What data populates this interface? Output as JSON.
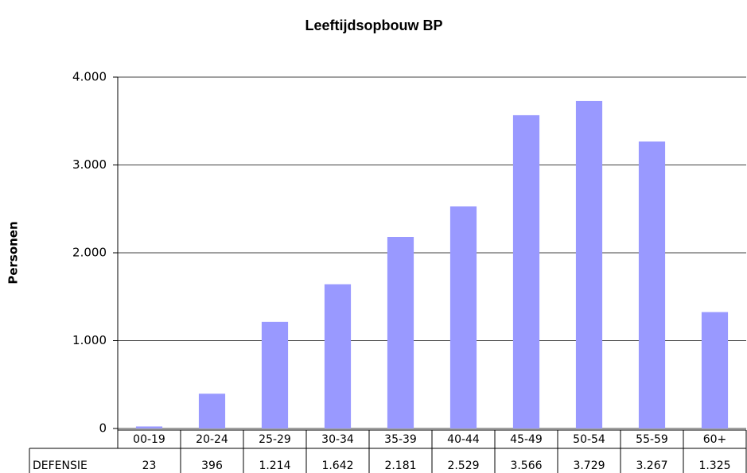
{
  "chart_data": {
    "type": "bar",
    "title": "Leeftijdsopbouw BP",
    "y_label": "Personen",
    "categories": [
      "00-19",
      "20-24",
      "25-29",
      "30-34",
      "35-39",
      "40-44",
      "45-49",
      "50-54",
      "55-59",
      "60+"
    ],
    "series": [
      {
        "name": "DEFENSIE",
        "color": "#9999ff",
        "values": [
          23,
          396,
          1214,
          1642,
          2181,
          2529,
          3566,
          3729,
          3267,
          1325
        ],
        "value_labels": [
          "23",
          "396",
          "1.214",
          "1.642",
          "2.181",
          "2.529",
          "3.566",
          "3.729",
          "3.267",
          "1.325"
        ]
      }
    ],
    "ylim": [
      0,
      4000
    ],
    "yticks": [
      0,
      {
        "value": 1000,
        "label": "1.000"
      },
      {
        "value": 2000,
        "label": "2.000"
      },
      {
        "value": 3000,
        "label": "3.000"
      },
      {
        "value": 4000,
        "label": "4.000"
      }
    ],
    "grid": true
  }
}
